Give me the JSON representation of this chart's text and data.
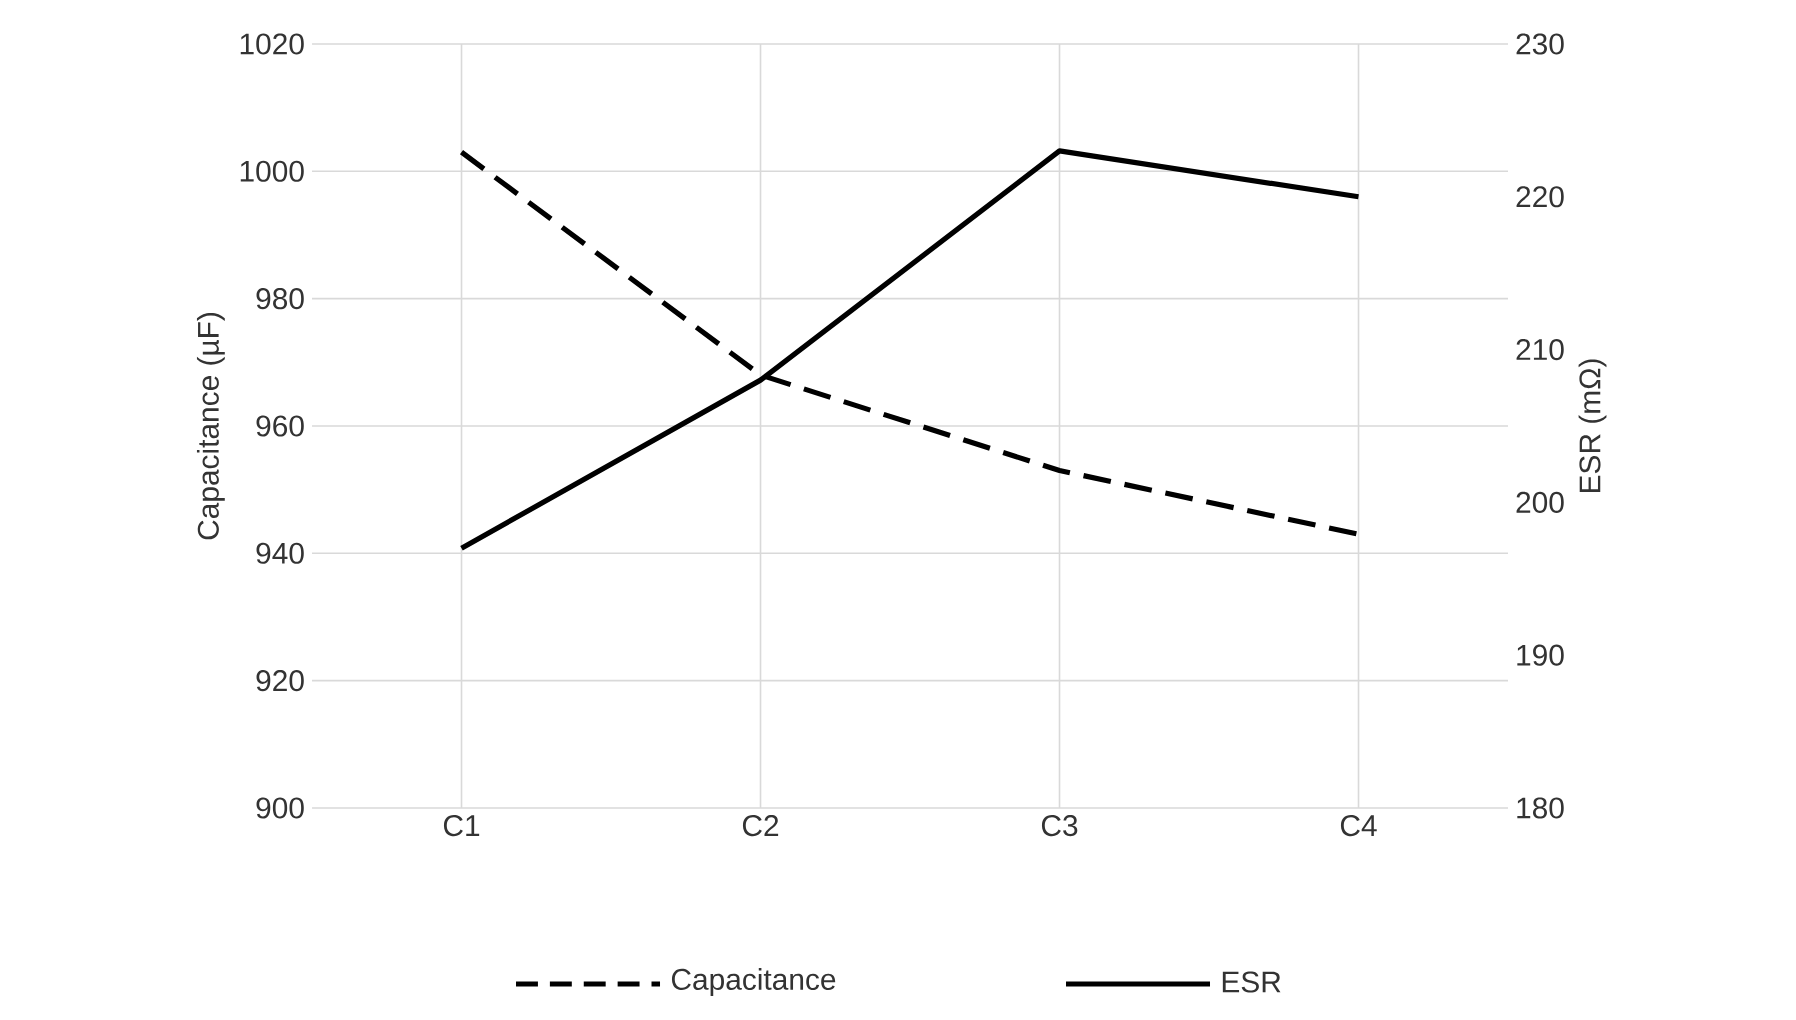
{
  "chart_data": {
    "type": "line",
    "categories": [
      "C1",
      "C2",
      "C3",
      "C4"
    ],
    "ylabel": "Capacitance (µF)",
    "y2label": "ESR (mΩ)",
    "series": [
      {
        "name": "Capacitance",
        "color": "#000000",
        "line_style": "dashed",
        "values": [
          1003,
          968,
          953,
          943
        ]
      },
      {
        "name": "ESR",
        "color": "#000000",
        "line_style": "solid",
        "axis": "y2",
        "values": [
          197,
          208,
          223,
          220
        ]
      }
    ],
    "ylim": [
      900,
      1020
    ],
    "yticks": [
      900,
      920,
      940,
      960,
      980,
      1000,
      1020
    ],
    "y2lim": [
      180,
      230
    ],
    "y2ticks": [
      180,
      190,
      200,
      210,
      220,
      230
    ],
    "grid": true,
    "legend": "bottom",
    "marker": "none"
  }
}
